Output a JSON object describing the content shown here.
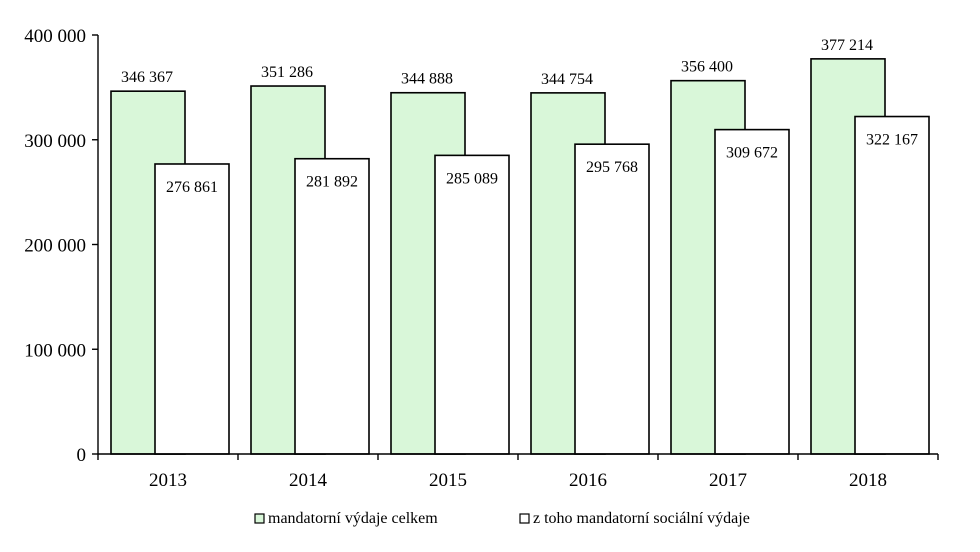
{
  "chart_data": {
    "type": "bar",
    "categories": [
      "2013",
      "2014",
      "2015",
      "2016",
      "2017",
      "2018"
    ],
    "series": [
      {
        "name": "mandatorní výdaje celkem",
        "values": [
          346367,
          351286,
          344888,
          344754,
          356400,
          377214
        ],
        "labels": [
          "346 367",
          "351 286",
          "344 888",
          "344 754",
          "356 400",
          "377 214"
        ],
        "color": "#d9f7d9"
      },
      {
        "name": "z toho mandatorní sociální výdaje",
        "values": [
          276861,
          281892,
          285089,
          295768,
          309672,
          322167
        ],
        "labels": [
          "276 861",
          "281 892",
          "285 089",
          "295 768",
          "309 672",
          "322 167"
        ],
        "color": "#ffffff"
      }
    ],
    "ylim": [
      0,
      400000
    ],
    "yticks": [
      0,
      100000,
      200000,
      300000,
      400000
    ],
    "ytick_labels": [
      "0",
      "100 000",
      "200 000",
      "300 000",
      "400 000"
    ],
    "grid": false,
    "legend_position": "bottom",
    "overlap": true
  }
}
